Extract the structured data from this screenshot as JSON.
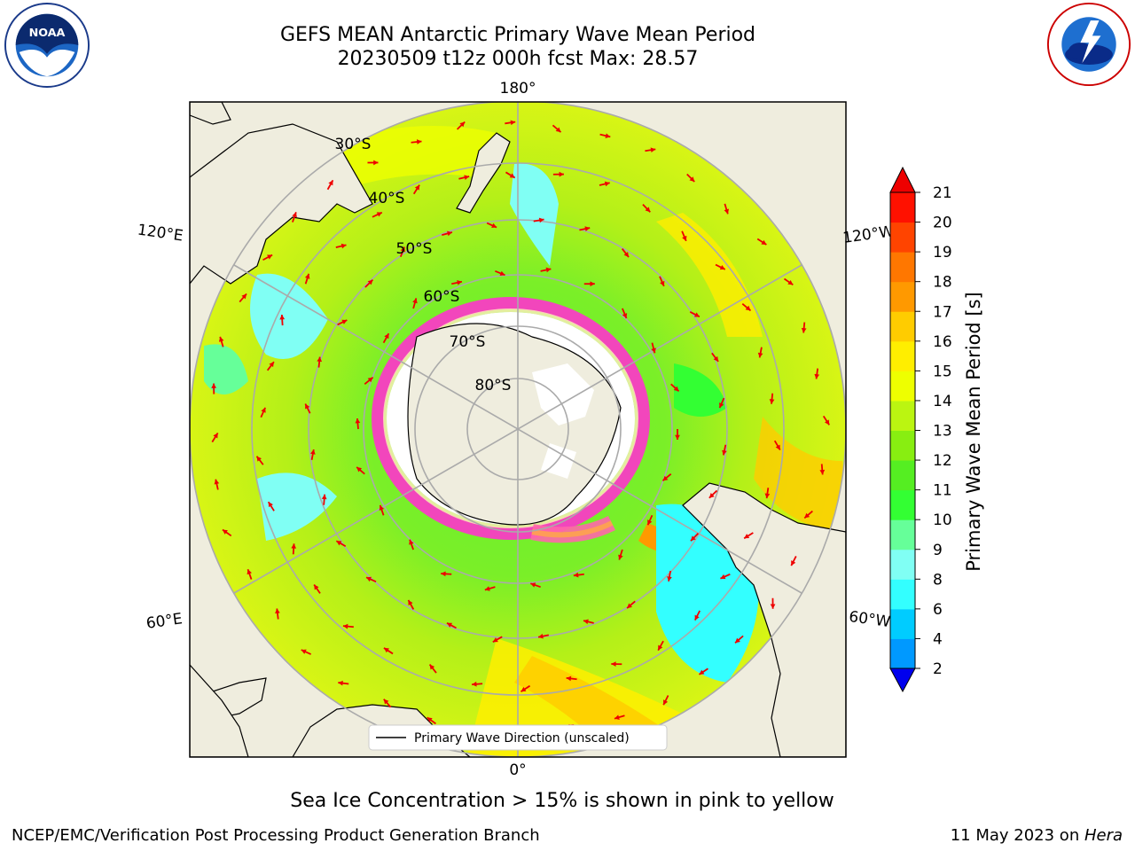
{
  "title": {
    "line1": "GEFS MEAN Antarctic Primary Wave Mean Period",
    "line2": "20230509 t12z 000h fcst   Max: 28.57"
  },
  "logos": {
    "left": "noaa-logo",
    "right": "national-weather-service-logo"
  },
  "map": {
    "projection": "south polar stereographic",
    "lon_labels": [
      "180°",
      "120°E",
      "120°W",
      "60°E",
      "60°W",
      "0°"
    ],
    "lat_labels": [
      "30°S",
      "40°S",
      "50°S",
      "60°S",
      "70°S",
      "80°S"
    ],
    "legend_label": "Primary Wave Direction (unscaled)"
  },
  "colorbar": {
    "label": "Primary Wave Mean Period [s]",
    "ticks": [
      "2",
      "4",
      "6",
      "8",
      "9",
      "10",
      "11",
      "12",
      "13",
      "14",
      "15",
      "16",
      "17",
      "18",
      "19",
      "20",
      "21"
    ],
    "colors": [
      "#0033ff",
      "#0099ff",
      "#00ccff",
      "#33ffff",
      "#80fff4",
      "#66ff99",
      "#33ff33",
      "#55ee22",
      "#88ee11",
      "#bbf511",
      "#eeff00",
      "#ffee00",
      "#ffcc00",
      "#ff9900",
      "#ff7700",
      "#ff4400",
      "#ff1100"
    ],
    "under_color": "#0000ee",
    "over_color": "#ee0000"
  },
  "caption": "Sea Ice Concentration > 15% is shown in pink to yellow",
  "footer": {
    "left": "NCEP/EMC/Verification Post Processing Product Generation Branch",
    "date": "11 May 2023 on ",
    "host": "Hera"
  }
}
